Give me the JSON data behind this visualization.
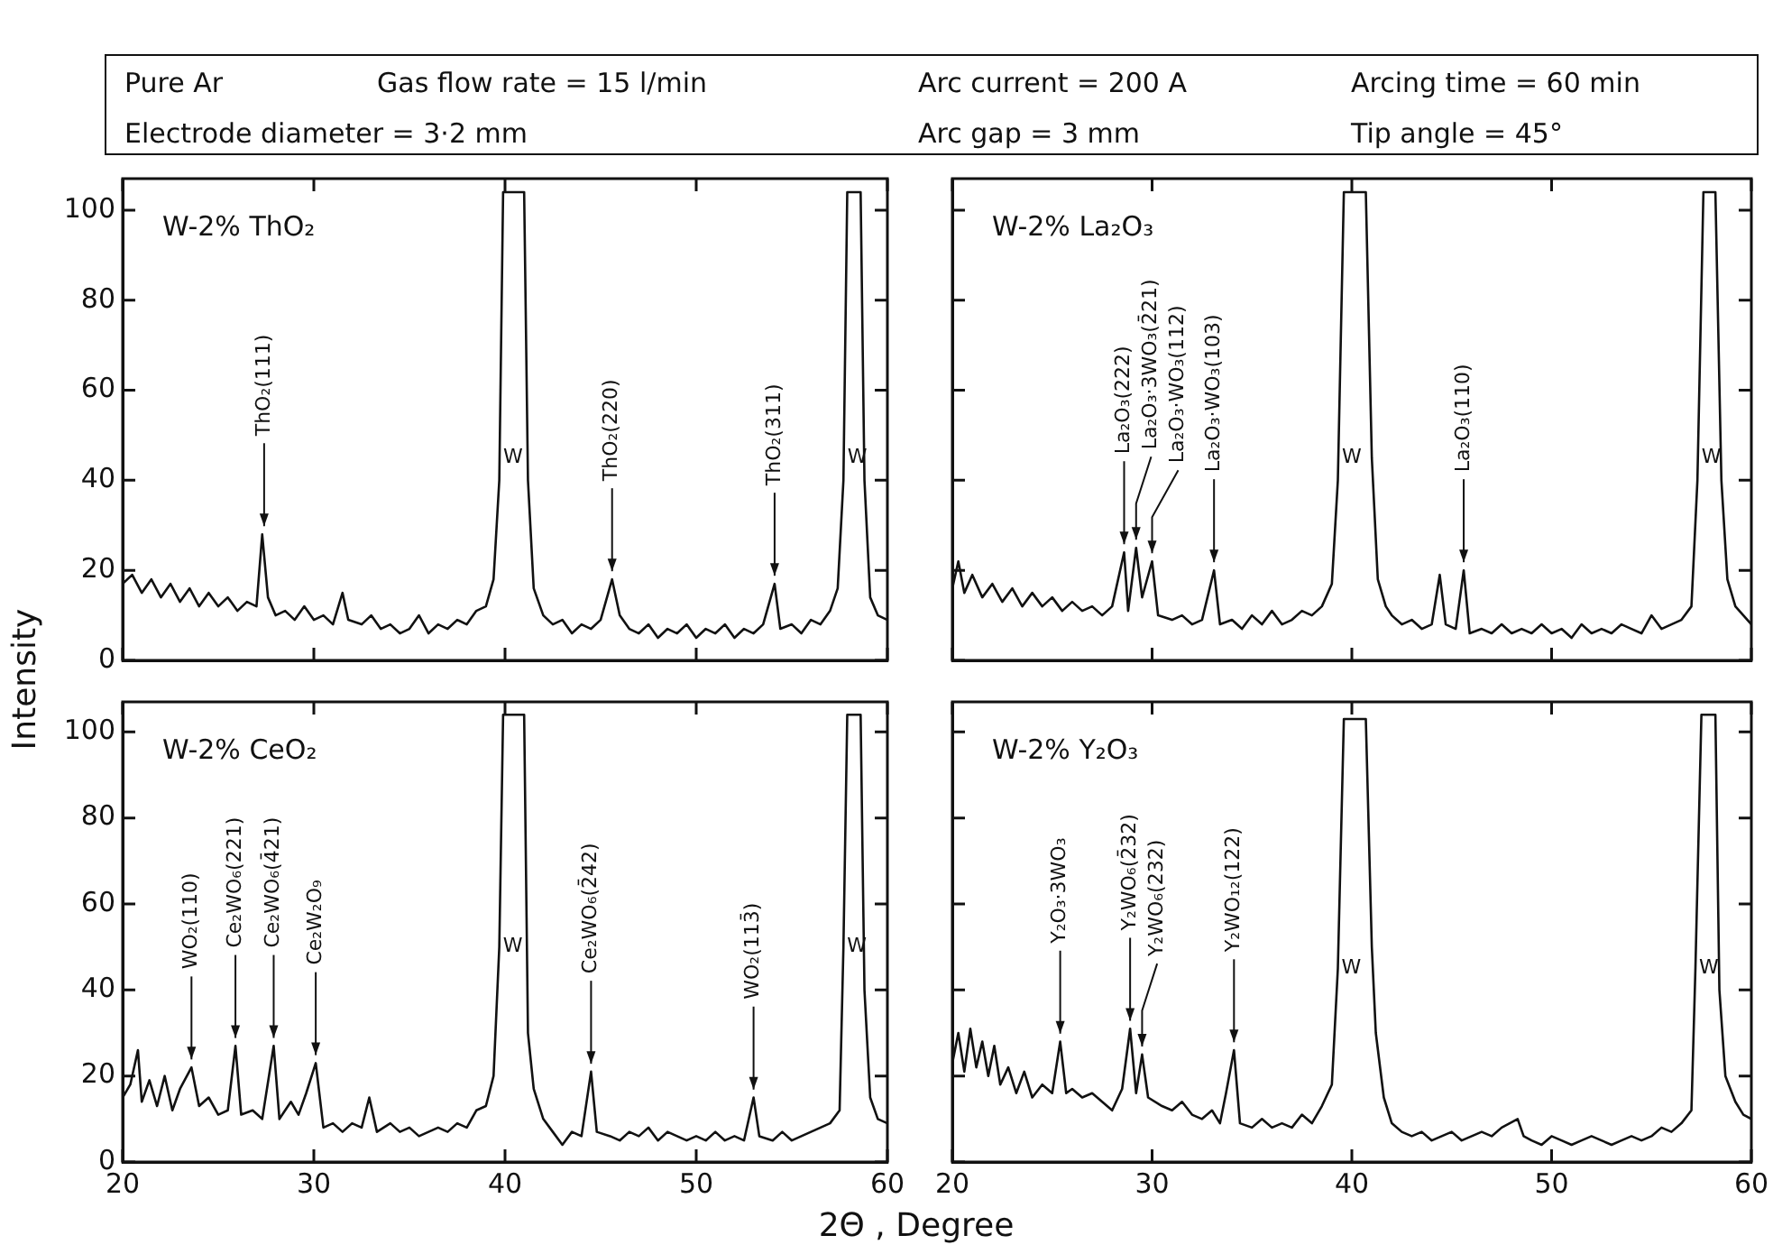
{
  "chart_data": [
    {
      "type": "other",
      "annotations": [
        "Pure Ar",
        "Gas flow rate = 15 l/min",
        "Arc current = 200 A",
        "Arcing time = 60 min",
        "Electrode diameter = 3·2 mm",
        "Arc gap = 3 mm",
        "Tip angle = 45°"
      ]
    },
    {
      "type": "line",
      "title": "W-2% ThO₂",
      "xlim": [
        20,
        60
      ],
      "xticks": [
        20,
        30,
        40,
        50,
        60
      ],
      "ylim": [
        0,
        107
      ],
      "yticks": [
        0,
        20,
        40,
        60,
        80,
        100
      ],
      "tick_labels": "y",
      "legend": false,
      "grid": false,
      "x": [
        20,
        20.5,
        21,
        21.5,
        22,
        22.5,
        23,
        23.5,
        24,
        24.5,
        25,
        25.5,
        26,
        26.5,
        27,
        27.3,
        27.6,
        28,
        28.5,
        29,
        29.5,
        30,
        30.5,
        31,
        31.5,
        31.8,
        32.5,
        33,
        33.5,
        34,
        34.5,
        35,
        35.5,
        36,
        36.5,
        37,
        37.5,
        38,
        38.5,
        39,
        39.4,
        39.7,
        39.9,
        41,
        41.2,
        41.5,
        42,
        42.5,
        43,
        43.5,
        44,
        44.5,
        45,
        45.6,
        46,
        46.5,
        47,
        47.5,
        48,
        48.5,
        49,
        49.5,
        50,
        50.5,
        51,
        51.5,
        52,
        52.5,
        53,
        53.5,
        54.1,
        54.4,
        55,
        55.5,
        56,
        56.5,
        57,
        57.4,
        57.7,
        57.9,
        58.6,
        58.8,
        59.1,
        59.5,
        60
      ],
      "series": [
        {
          "color": "#111111",
          "values": [
            17,
            19,
            15,
            18,
            14,
            17,
            13,
            16,
            12,
            15,
            12,
            14,
            11,
            13,
            12,
            28,
            14,
            10,
            11,
            9,
            12,
            9,
            10,
            8,
            15,
            9,
            8,
            10,
            7,
            8,
            6,
            7,
            10,
            6,
            8,
            7,
            9,
            8,
            11,
            12,
            18,
            40,
            104,
            104,
            40,
            16,
            10,
            8,
            9,
            6,
            8,
            7,
            9,
            18,
            10,
            7,
            6,
            8,
            5,
            7,
            6,
            8,
            5,
            7,
            6,
            8,
            5,
            7,
            6,
            8,
            17,
            7,
            8,
            6,
            9,
            8,
            11,
            16,
            40,
            104,
            104,
            40,
            14,
            10,
            9
          ]
        }
      ],
      "annotations": [
        {
          "text": "ThO₂(111)",
          "x": 27.4,
          "y": 29
        },
        {
          "text": "W",
          "x": 39.72,
          "y": 45
        },
        {
          "text": "ThO₂(220)",
          "x": 45.6,
          "y": 19
        },
        {
          "text": "ThO₂(311)",
          "x": 54.1,
          "y": 18
        },
        {
          "text": "W",
          "x": 57.72,
          "y": 45
        }
      ]
    },
    {
      "type": "line",
      "title": "W-2% La₂O₃",
      "xlim": [
        20,
        60
      ],
      "xticks": [
        20,
        30,
        40,
        50,
        60
      ],
      "ylim": [
        0,
        107
      ],
      "yticks": [
        0,
        20,
        40,
        60,
        80,
        100
      ],
      "tick_labels": false,
      "legend": false,
      "grid": false,
      "x": [
        20,
        20.3,
        20.6,
        21,
        21.5,
        22,
        22.5,
        23,
        23.5,
        24,
        24.5,
        25,
        25.5,
        26,
        26.5,
        27,
        27.5,
        28,
        28.6,
        28.8,
        29.2,
        29.5,
        30,
        30.3,
        31,
        31.5,
        32,
        32.5,
        33.1,
        33.4,
        34,
        34.5,
        35,
        35.5,
        36,
        36.5,
        37,
        37.5,
        38,
        38.5,
        39,
        39.3,
        39.6,
        40.7,
        41,
        41.3,
        41.7,
        42,
        42.5,
        43,
        43.5,
        44,
        44.4,
        44.7,
        45.2,
        45.6,
        45.9,
        46.5,
        47,
        47.5,
        48,
        48.5,
        49,
        49.5,
        50,
        50.5,
        51,
        51.5,
        52,
        52.5,
        53,
        53.5,
        54,
        54.5,
        55,
        55.5,
        56,
        56.5,
        57,
        57.3,
        57.6,
        58.2,
        58.5,
        58.8,
        59.2,
        59.6,
        60
      ],
      "series": [
        {
          "color": "#111111",
          "values": [
            16,
            22,
            15,
            19,
            14,
            17,
            13,
            16,
            12,
            15,
            12,
            14,
            11,
            13,
            11,
            12,
            10,
            12,
            24,
            11,
            25,
            14,
            22,
            10,
            9,
            10,
            8,
            9,
            20,
            8,
            9,
            7,
            10,
            8,
            11,
            8,
            9,
            11,
            10,
            12,
            17,
            40,
            104,
            104,
            45,
            18,
            12,
            10,
            8,
            9,
            7,
            8,
            19,
            8,
            7,
            20,
            6,
            7,
            6,
            8,
            6,
            7,
            6,
            8,
            6,
            7,
            5,
            8,
            6,
            7,
            6,
            8,
            7,
            6,
            10,
            7,
            8,
            9,
            12,
            40,
            104,
            104,
            40,
            18,
            12,
            10,
            8
          ]
        }
      ],
      "annotations": [
        {
          "text": "La₂O₃(222)",
          "x": 28.6,
          "y": 25
        },
        {
          "text": "La₂O₃·3WO₃(2̄21)",
          "x": 29.2,
          "y": 26
        },
        {
          "text": "La₂O₃·WO₃(112)",
          "x": 30,
          "y": 23
        },
        {
          "text": "La₂O₃·WO₃(103)",
          "x": 33.1,
          "y": 21
        },
        {
          "text": "W",
          "x": 39.32,
          "y": 45
        },
        {
          "text": "La₂O₃(110)",
          "x": 45.6,
          "y": 21
        },
        {
          "text": "W",
          "x": 57.32,
          "y": 45
        }
      ]
    },
    {
      "type": "line",
      "title": "W-2% CeO₂",
      "xlabel": "2Θ , Degree",
      "ylabel": "Intensity",
      "xlim": [
        20,
        60
      ],
      "xticks": [
        20,
        30,
        40,
        50,
        60
      ],
      "ylim": [
        0,
        107
      ],
      "yticks": [
        0,
        20,
        40,
        60,
        80,
        100
      ],
      "legend": false,
      "grid": false,
      "x": [
        20,
        20.4,
        20.8,
        21,
        21.4,
        21.8,
        22.2,
        22.6,
        23,
        23.6,
        24,
        24.5,
        25,
        25.5,
        25.9,
        26.2,
        26.8,
        27.3,
        27.9,
        28.2,
        28.8,
        29.2,
        29.6,
        30.1,
        30.5,
        31,
        31.5,
        32,
        32.5,
        32.9,
        33.3,
        34,
        34.5,
        35,
        35.5,
        36,
        36.5,
        37,
        37.5,
        38,
        38.5,
        39,
        39.4,
        39.7,
        39.9,
        41,
        41.2,
        41.5,
        42,
        42.5,
        43,
        43.5,
        44,
        44.5,
        44.8,
        45.5,
        46,
        46.5,
        47,
        47.5,
        48,
        48.5,
        49,
        49.5,
        50,
        50.5,
        51,
        51.5,
        52,
        52.5,
        53,
        53.3,
        54,
        54.5,
        55,
        55.5,
        56,
        56.5,
        57,
        57.5,
        57.7,
        57.9,
        58.6,
        58.8,
        59.1,
        59.5,
        60
      ],
      "series": [
        {
          "color": "#111111",
          "values": [
            15,
            18,
            26,
            14,
            19,
            13,
            20,
            12,
            17,
            22,
            13,
            15,
            11,
            12,
            27,
            11,
            12,
            10,
            27,
            10,
            14,
            11,
            16,
            23,
            8,
            9,
            7,
            9,
            8,
            15,
            7,
            9,
            7,
            8,
            6,
            7,
            8,
            7,
            9,
            8,
            12,
            13,
            20,
            50,
            104,
            104,
            30,
            17,
            10,
            7,
            4,
            7,
            6,
            21,
            7,
            6,
            5,
            7,
            6,
            8,
            5,
            7,
            6,
            5,
            6,
            5,
            7,
            5,
            6,
            5,
            15,
            6,
            5,
            7,
            5,
            6,
            7,
            8,
            9,
            12,
            50,
            104,
            104,
            40,
            15,
            10,
            9
          ]
        }
      ],
      "annotations": [
        {
          "text": "WO₂(110)",
          "x": 23.6,
          "y": 23
        },
        {
          "text": "Ce₂WO₆(221)",
          "x": 25.9,
          "y": 28
        },
        {
          "text": "Ce₂WO₆(4̄21)",
          "x": 27.9,
          "y": 28
        },
        {
          "text": "Ce₂W₂O₉",
          "x": 30.1,
          "y": 24
        },
        {
          "text": "W",
          "x": 39.7,
          "y": 50
        },
        {
          "text": "Ce₂WO₆(2̄42)",
          "x": 44.5,
          "y": 22
        },
        {
          "text": "WO₂(113̄)",
          "x": 53,
          "y": 16
        },
        {
          "text": "W",
          "x": 57.7,
          "y": 50
        }
      ]
    },
    {
      "type": "line",
      "title": "W-2% Y₂O₃",
      "xlim": [
        20,
        60
      ],
      "xticks": [
        20,
        30,
        40,
        50,
        60
      ],
      "ylim": [
        0,
        107
      ],
      "yticks": [
        0,
        20,
        40,
        60,
        80,
        100
      ],
      "tick_labels": "x",
      "legend": false,
      "grid": false,
      "x": [
        20,
        20.3,
        20.6,
        20.9,
        21.2,
        21.5,
        21.8,
        22.1,
        22.4,
        22.8,
        23.2,
        23.6,
        24,
        24.5,
        25,
        25.4,
        25.7,
        26,
        26.5,
        27,
        27.5,
        28,
        28.5,
        28.9,
        29.2,
        29.5,
        29.8,
        30.5,
        31,
        31.5,
        32,
        32.5,
        33,
        33.4,
        33.7,
        34.1,
        34.4,
        35,
        35.5,
        36,
        36.5,
        37,
        37.5,
        38,
        38.5,
        39,
        39.3,
        39.6,
        40.7,
        41,
        41.2,
        41.6,
        42,
        42.5,
        43,
        43.5,
        44,
        44.5,
        45,
        45.5,
        46,
        46.5,
        47,
        47.5,
        48.3,
        48.6,
        49,
        49.5,
        50,
        50.5,
        51,
        51.5,
        52,
        52.5,
        53,
        53.5,
        54,
        54.5,
        55,
        55.5,
        56,
        56.5,
        57,
        57.2,
        57.5,
        58.2,
        58.4,
        58.7,
        59.2,
        59.6,
        60
      ],
      "series": [
        {
          "color": "#111111",
          "values": [
            23,
            30,
            21,
            31,
            22,
            28,
            20,
            27,
            18,
            22,
            16,
            21,
            15,
            18,
            16,
            28,
            16,
            17,
            15,
            16,
            14,
            12,
            17,
            31,
            16,
            25,
            15,
            13,
            12,
            14,
            11,
            10,
            12,
            9,
            16,
            26,
            9,
            8,
            10,
            8,
            9,
            8,
            11,
            9,
            13,
            18,
            45,
            103,
            103,
            50,
            30,
            15,
            9,
            7,
            6,
            7,
            5,
            6,
            7,
            5,
            6,
            7,
            6,
            8,
            10,
            6,
            5,
            4,
            6,
            5,
            4,
            5,
            6,
            5,
            4,
            5,
            6,
            5,
            6,
            8,
            7,
            9,
            12,
            45,
            104,
            104,
            40,
            20,
            14,
            11,
            10
          ]
        }
      ],
      "annotations": [
        {
          "text": "Y₂O₃·3WO₃",
          "x": 25.4,
          "y": 29
        },
        {
          "text": "Y₂WO₆(2̄32)",
          "x": 28.9,
          "y": 32
        },
        {
          "text": "Y₂WO₆(232)",
          "x": 29.5,
          "y": 26
        },
        {
          "text": "Y₂WO₁₂(122)",
          "x": 34.1,
          "y": 27
        },
        {
          "text": "W",
          "x": 39.3,
          "y": 45
        },
        {
          "text": "W",
          "x": 57.2,
          "y": 45
        }
      ]
    }
  ]
}
